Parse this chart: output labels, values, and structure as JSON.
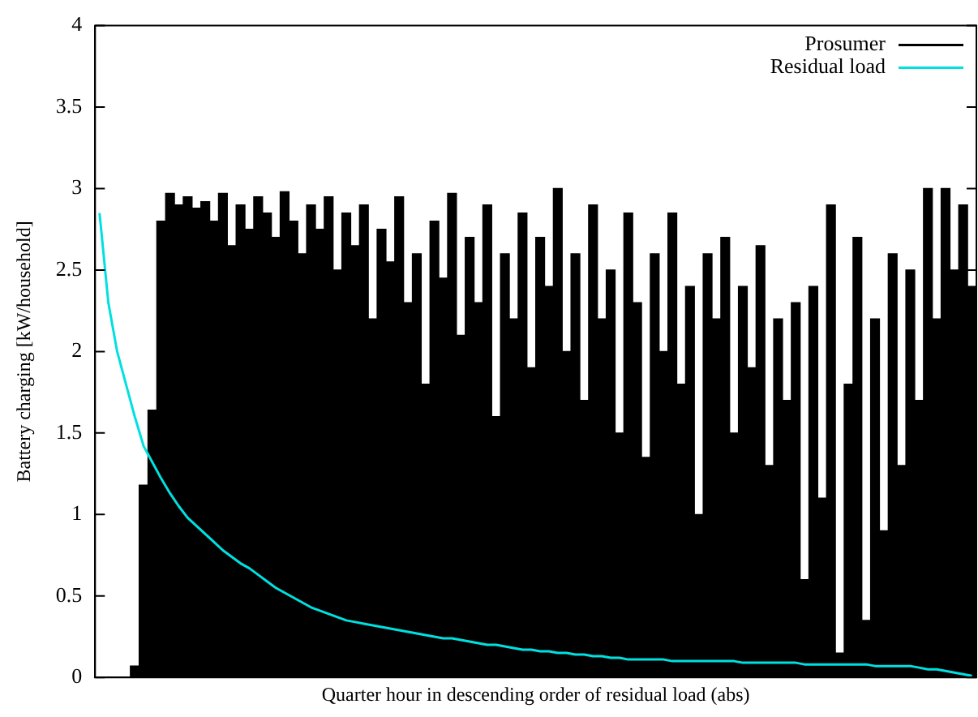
{
  "chart_data": {
    "type": "bar",
    "xlabel": "Quarter hour in descending order of residual load (abs)",
    "ylabel": "Battery charging [kW/household]",
    "categories": [
      null,
      null,
      null,
      null,
      null,
      null,
      null,
      null,
      null,
      null,
      null,
      null,
      null,
      null,
      null,
      null,
      null,
      null,
      null,
      null,
      null,
      null,
      null,
      null,
      null,
      null,
      null,
      null,
      null,
      null,
      null,
      null,
      null,
      null,
      null,
      null,
      null,
      null,
      null,
      null,
      null,
      null,
      null,
      null,
      null,
      null,
      null,
      null,
      null,
      null,
      null,
      null,
      null,
      null,
      null,
      null,
      null,
      null,
      null,
      null,
      null,
      null,
      null,
      null,
      null,
      null,
      null,
      null,
      null,
      null,
      null,
      null,
      null,
      null,
      null,
      null,
      null,
      null,
      null,
      null,
      null,
      null,
      null,
      null,
      null,
      null,
      null,
      null,
      null,
      null,
      null,
      null,
      null,
      null,
      null,
      null,
      null,
      null,
      null,
      null
    ],
    "series": [
      {
        "name": "Prosumer",
        "color": "#000000",
        "values": [
          0,
          0,
          0,
          0,
          0.07,
          1.18,
          1.64,
          2.8,
          2.97,
          2.9,
          2.95,
          2.88,
          2.92,
          2.8,
          2.97,
          2.65,
          2.9,
          2.75,
          2.95,
          2.85,
          2.7,
          2.98,
          2.8,
          2.6,
          2.9,
          2.75,
          2.95,
          2.5,
          2.85,
          2.65,
          2.9,
          2.2,
          2.75,
          2.55,
          2.95,
          2.3,
          2.6,
          1.8,
          2.8,
          2.45,
          2.97,
          2.1,
          2.7,
          2.3,
          2.9,
          1.6,
          2.6,
          2.2,
          2.85,
          1.9,
          2.7,
          2.4,
          3.0,
          2.0,
          2.6,
          1.7,
          2.9,
          2.2,
          2.5,
          1.5,
          2.85,
          2.3,
          1.35,
          2.6,
          2.0,
          2.85,
          1.8,
          2.4,
          1.0,
          2.6,
          2.2,
          2.7,
          1.5,
          2.4,
          1.9,
          2.65,
          1.3,
          2.2,
          1.7,
          2.3,
          0.6,
          2.4,
          1.1,
          2.9,
          0.15,
          1.8,
          2.7,
          0.35,
          2.2,
          0.9,
          2.6,
          1.3,
          2.5,
          1.7,
          3.0,
          2.2,
          3.0,
          2.5,
          2.9,
          2.4
        ]
      },
      {
        "name": "Residual load",
        "type": "line",
        "color": "#00e0e0",
        "values": [
          2.85,
          2.3,
          2.0,
          1.8,
          1.6,
          1.42,
          1.32,
          1.22,
          1.13,
          1.05,
          0.98,
          0.93,
          0.88,
          0.83,
          0.78,
          0.74,
          0.7,
          0.67,
          0.63,
          0.59,
          0.55,
          0.52,
          0.49,
          0.46,
          0.43,
          0.41,
          0.39,
          0.37,
          0.35,
          0.34,
          0.33,
          0.32,
          0.31,
          0.3,
          0.29,
          0.28,
          0.27,
          0.26,
          0.25,
          0.24,
          0.24,
          0.23,
          0.22,
          0.21,
          0.2,
          0.2,
          0.19,
          0.18,
          0.17,
          0.17,
          0.16,
          0.16,
          0.15,
          0.15,
          0.14,
          0.14,
          0.13,
          0.13,
          0.12,
          0.12,
          0.11,
          0.11,
          0.11,
          0.11,
          0.11,
          0.1,
          0.1,
          0.1,
          0.1,
          0.1,
          0.1,
          0.1,
          0.1,
          0.09,
          0.09,
          0.09,
          0.09,
          0.09,
          0.09,
          0.09,
          0.08,
          0.08,
          0.08,
          0.08,
          0.08,
          0.08,
          0.08,
          0.08,
          0.07,
          0.07,
          0.07,
          0.07,
          0.07,
          0.06,
          0.05,
          0.05,
          0.04,
          0.03,
          0.02,
          0.01
        ]
      }
    ],
    "ylim": [
      0,
      4
    ],
    "yticks": [
      0,
      0.5,
      1,
      1.5,
      2,
      2.5,
      3,
      3.5,
      4
    ],
    "tick_labels": "y",
    "grid": false,
    "legend": "top right",
    "marker": "none",
    "line_style": "solid"
  }
}
